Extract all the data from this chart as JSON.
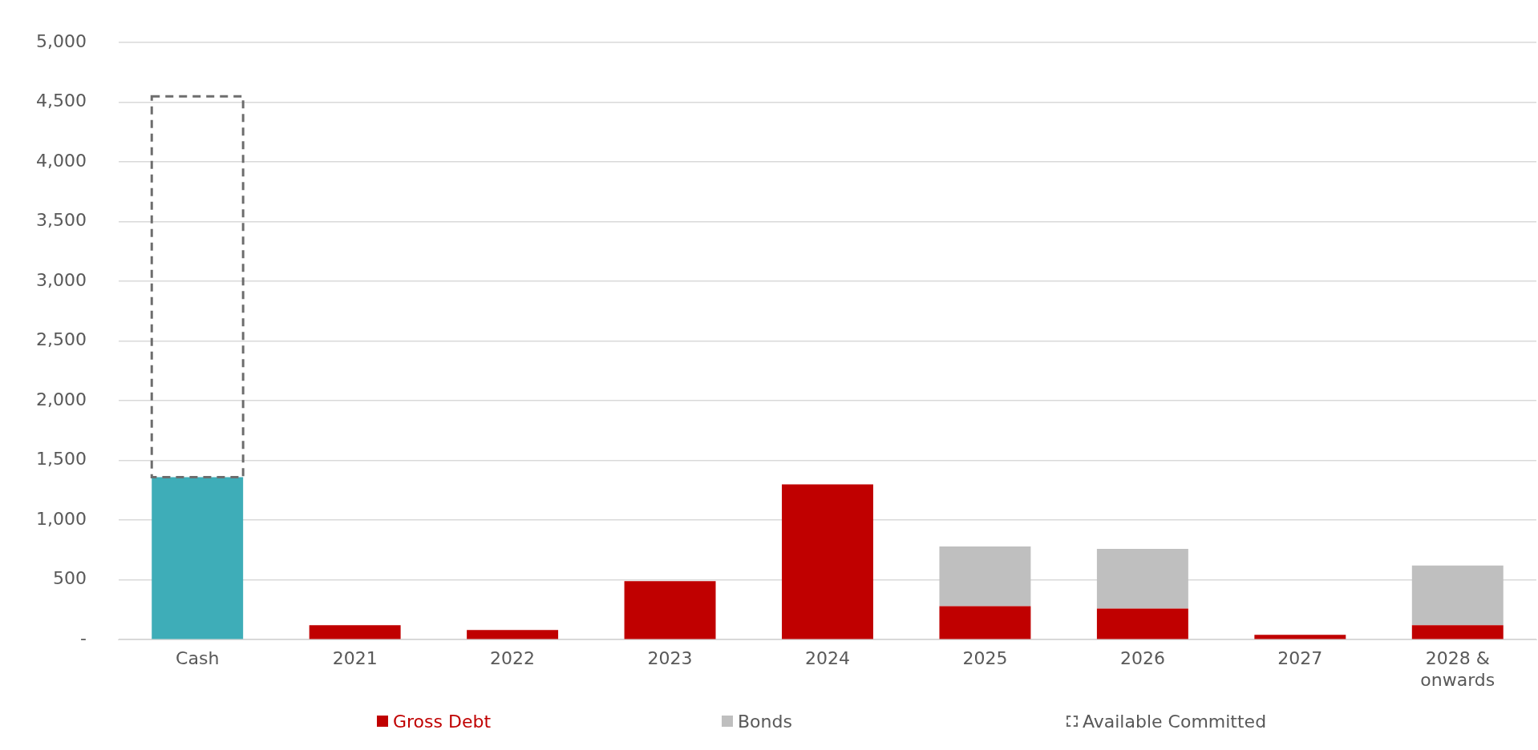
{
  "chart_data": {
    "type": "bar",
    "stacked": true,
    "grid": "y",
    "legend": "bottom",
    "categories": [
      "Cash",
      "2021",
      "2022",
      "2023",
      "2024",
      "2025",
      "2026",
      "2027",
      "2028 & onwards"
    ],
    "ylim": [
      0,
      5000
    ],
    "yticks": [
      {
        "value": 0,
        "label": "-"
      },
      {
        "value": 500,
        "label": "500"
      },
      {
        "value": 1000,
        "label": "1,000"
      },
      {
        "value": 1500,
        "label": "1,500"
      },
      {
        "value": 2000,
        "label": "2,000"
      },
      {
        "value": 2500,
        "label": "2,500"
      },
      {
        "value": 3000,
        "label": "3,000"
      },
      {
        "value": 3500,
        "label": "3,500"
      },
      {
        "value": 4000,
        "label": "4,000"
      },
      {
        "value": 4500,
        "label": "4,500"
      },
      {
        "value": 5000,
        "label": "5,000"
      }
    ],
    "series": [
      {
        "color": "#3eadb8",
        "values": [
          1360,
          null,
          null,
          null,
          null,
          null,
          null,
          null,
          null
        ]
      },
      {
        "name": "Gross Debt",
        "color": "#c00000",
        "values": [
          null,
          120,
          80,
          490,
          1300,
          280,
          260,
          40,
          120
        ]
      },
      {
        "name": "Bonds",
        "color": "#bfbfbf",
        "values": [
          null,
          null,
          null,
          null,
          null,
          500,
          500,
          null,
          500
        ]
      },
      {
        "name": "Available Committed",
        "color": "#6d6d6d",
        "line_style": "dashed",
        "values": [
          3190,
          null,
          null,
          null,
          null,
          null,
          null,
          null,
          null
        ]
      }
    ]
  }
}
